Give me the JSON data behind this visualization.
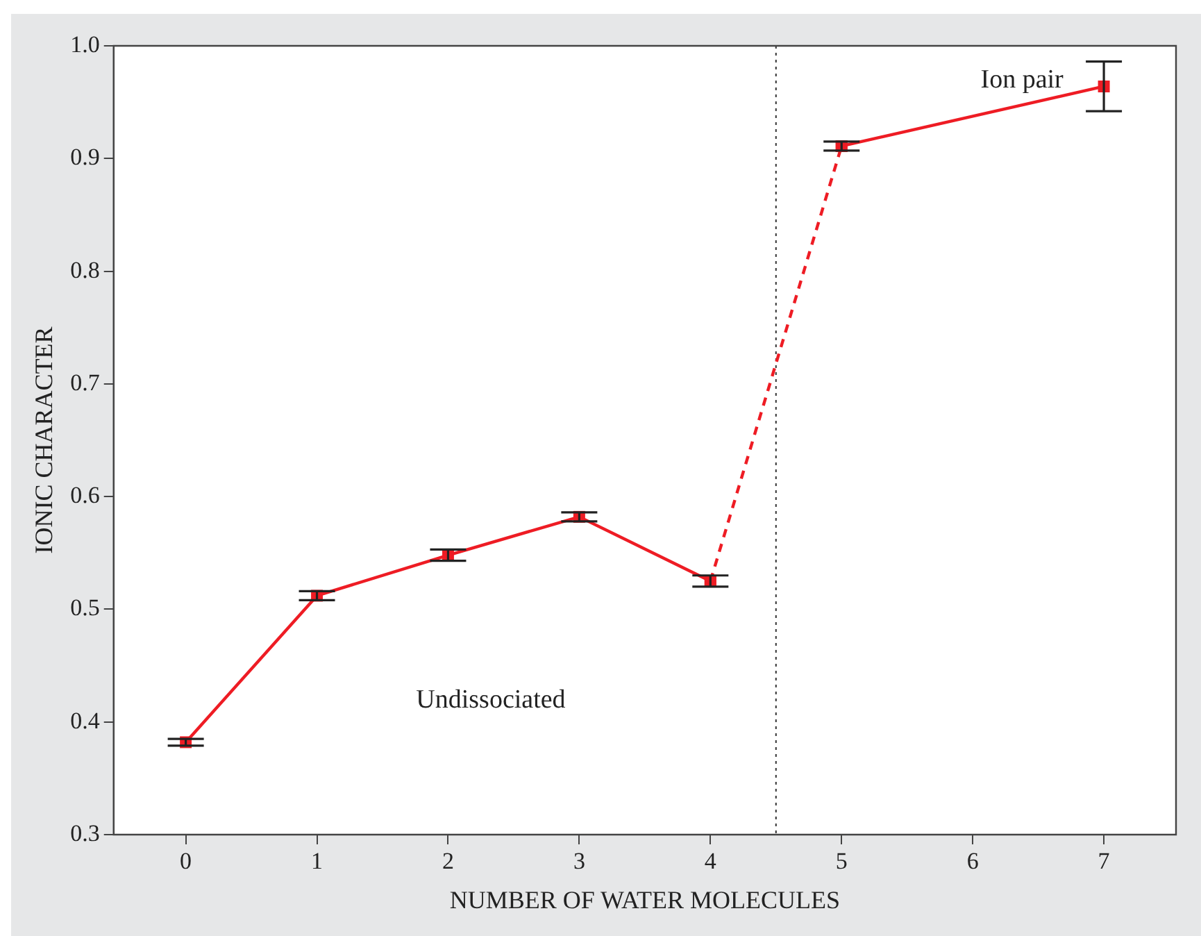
{
  "chart_data": {
    "type": "line",
    "xlabel": "NUMBER OF WATER MOLECULES",
    "ylabel": "IONIC CHARACTER",
    "xlim": [
      -0.55,
      7.55
    ],
    "xticks": [
      0,
      1,
      2,
      3,
      4,
      5,
      6,
      7
    ],
    "ylim": [
      0.3,
      1.0
    ],
    "yticks": [
      0.3,
      0.4,
      0.5,
      0.6,
      0.7,
      0.8,
      0.9,
      {
        "value": 1.0,
        "label": "1.0"
      }
    ],
    "grid": false,
    "legend": false,
    "marker": "square",
    "series": [
      {
        "color": "#ee1c24",
        "x": [
          0,
          1,
          2,
          3,
          4
        ],
        "values": [
          0.382,
          0.512,
          0.548,
          0.582,
          0.525
        ],
        "errors": [
          0.003,
          0.004,
          0.005,
          0.004,
          0.005
        ],
        "line_style": "solid"
      },
      {
        "color": "#ee1c24",
        "x": [
          4,
          5
        ],
        "values": [
          0.525,
          0.911
        ],
        "line_style": "dashed"
      },
      {
        "color": "#ee1c24",
        "x": [
          5,
          7
        ],
        "values": [
          0.911,
          0.964
        ],
        "errors": [
          0.004,
          0.022
        ],
        "line_style": "solid"
      }
    ],
    "ref_lines": [
      {
        "axis": "x",
        "value": 4.5,
        "line_style": "dotted",
        "color": "#333333"
      }
    ],
    "annotations": [
      "Undissociated",
      "Ion pair"
    ]
  }
}
